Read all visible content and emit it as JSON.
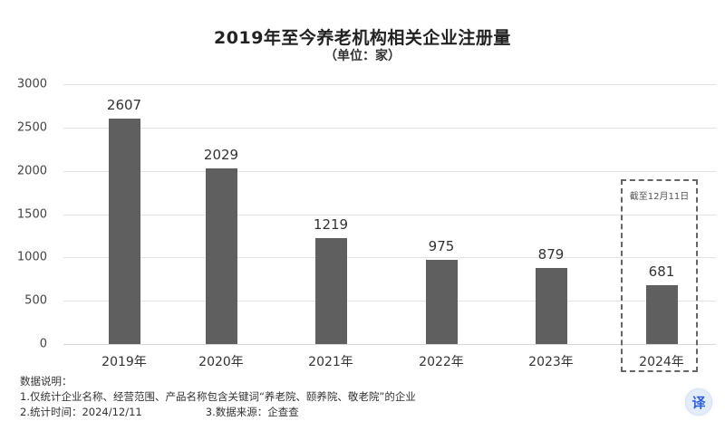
{
  "header": {
    "title": "2019年至今养老机构相关企业注册量",
    "subtitle": "（单位：家）"
  },
  "annotation": {
    "cutoff_label": "截至12月11日"
  },
  "notes": {
    "heading": "数据说明：",
    "line1": "1.仅统计企业名称、经营范围、产品名称包含关键词“养老院、颐养院、敬老院”的企业",
    "line2a": "2.统计时间：2024/12/11",
    "line2b": "3.数据来源：企查查"
  },
  "translate_button": {
    "label": "译",
    "icon": "translate-icon"
  },
  "colors": {
    "bar": "#5f5f5f",
    "grid": "#e3e3e3",
    "dash_box": "#666666",
    "translate_accent": "#2b63d9"
  },
  "chart_data": {
    "type": "bar",
    "title": "2019年至今养老机构相关企业注册量",
    "subtitle": "（单位：家）",
    "xlabel": "",
    "ylabel": "",
    "categories": [
      "2019年",
      "2020年",
      "2021年",
      "2022年",
      "2023年",
      "2024年"
    ],
    "values": [
      2607,
      2029,
      1219,
      975,
      879,
      681
    ],
    "ylim": [
      0,
      3000
    ],
    "yticks": [
      0,
      500,
      1000,
      1500,
      2000,
      2500,
      3000
    ],
    "ytick_labels": [
      "0",
      "500",
      "1000",
      "1500",
      "2000",
      "2500",
      "3000"
    ],
    "grid": true,
    "legend": null,
    "data_labels": [
      "2607",
      "2029",
      "1219",
      "975",
      "879",
      "681"
    ],
    "annotations": [
      {
        "target": "2024年",
        "text": "截至12月11日",
        "style": "dashed box"
      }
    ]
  }
}
